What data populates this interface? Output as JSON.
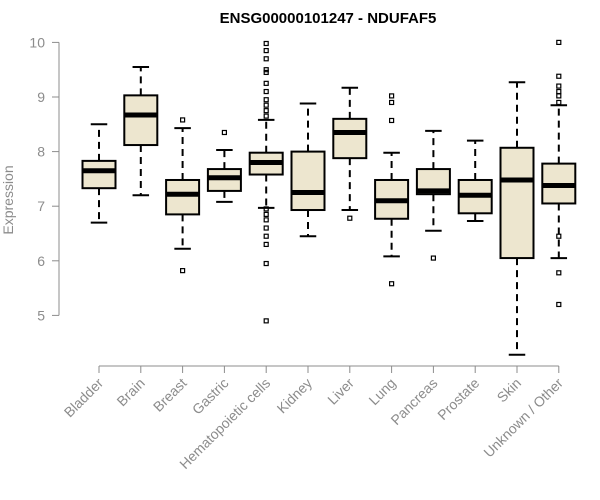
{
  "chart_data": {
    "type": "boxplot",
    "title": "ENSG00000101247 - NDUFAF5",
    "ylabel": "Expression",
    "ylim": [
      4.3,
      10.1
    ],
    "yticks": [
      5,
      6,
      7,
      8,
      9,
      10
    ],
    "colors": {
      "box_fill": "#ede6cf",
      "box_stroke": "#000000",
      "axis": "#8c8c8c",
      "text": "#8c8c8c"
    },
    "categories": [
      "Bladder",
      "Brain",
      "Breast",
      "Gastric",
      "Hematopoietic cells",
      "Kidney",
      "Liver",
      "Lung",
      "Pancreas",
      "Prostate",
      "Skin",
      "Unknown / Other"
    ],
    "boxes": [
      {
        "whisker_low": 6.7,
        "q1": 7.33,
        "median": 7.65,
        "q3": 7.83,
        "whisker_high": 8.5,
        "outliers": []
      },
      {
        "whisker_low": 7.2,
        "q1": 8.12,
        "median": 8.67,
        "q3": 9.03,
        "whisker_high": 9.55,
        "outliers": []
      },
      {
        "whisker_low": 6.22,
        "q1": 6.85,
        "median": 7.22,
        "q3": 7.48,
        "whisker_high": 8.43,
        "outliers": [
          5.82,
          8.58
        ]
      },
      {
        "whisker_low": 7.08,
        "q1": 7.28,
        "median": 7.52,
        "q3": 7.68,
        "whisker_high": 8.03,
        "outliers": [
          8.35
        ]
      },
      {
        "whisker_low": 6.97,
        "q1": 7.58,
        "median": 7.8,
        "q3": 7.98,
        "whisker_high": 8.58,
        "outliers": [
          4.9,
          5.95,
          6.3,
          6.45,
          6.6,
          6.75,
          6.85,
          6.95,
          8.65,
          8.75,
          8.85,
          8.95,
          9.1,
          9.25,
          9.45,
          9.5,
          9.7,
          9.85,
          9.98
        ]
      },
      {
        "whisker_low": 6.45,
        "q1": 6.93,
        "median": 7.25,
        "q3": 8.0,
        "whisker_high": 8.88,
        "outliers": []
      },
      {
        "whisker_low": 6.93,
        "q1": 7.88,
        "median": 8.35,
        "q3": 8.6,
        "whisker_high": 9.17,
        "outliers": [
          6.78
        ]
      },
      {
        "whisker_low": 6.08,
        "q1": 6.77,
        "median": 7.1,
        "q3": 7.48,
        "whisker_high": 7.98,
        "outliers": [
          5.58,
          8.57,
          8.9,
          9.02
        ]
      },
      {
        "whisker_low": 6.55,
        "q1": 7.22,
        "median": 7.28,
        "q3": 7.68,
        "whisker_high": 8.38,
        "outliers": [
          6.05
        ]
      },
      {
        "whisker_low": 6.73,
        "q1": 6.87,
        "median": 7.2,
        "q3": 7.48,
        "whisker_high": 8.2,
        "outliers": []
      },
      {
        "whisker_low": 4.28,
        "q1": 6.05,
        "median": 7.48,
        "q3": 8.07,
        "whisker_high": 9.27,
        "outliers": []
      },
      {
        "whisker_low": 6.05,
        "q1": 7.05,
        "median": 7.38,
        "q3": 7.78,
        "whisker_high": 8.85,
        "outliers": [
          5.2,
          5.78,
          6.45,
          8.9,
          9.02,
          9.1,
          9.2,
          9.38,
          10.0
        ]
      }
    ]
  }
}
